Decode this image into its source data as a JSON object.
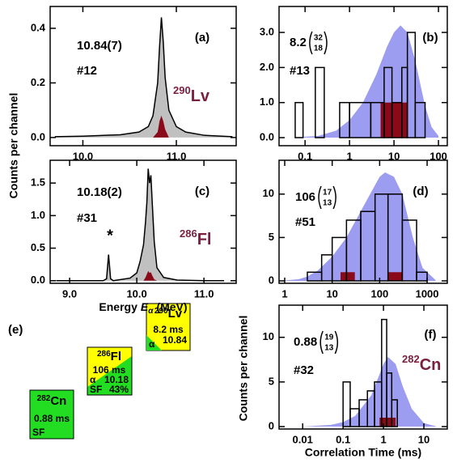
{
  "chart_data": [
    {
      "type": "area",
      "label": "(a)",
      "energy": "10.84(7)",
      "count_label": "#12",
      "nuclide": {
        "mass": "290",
        "symbol": "Lv"
      },
      "ylabel": "Counts per channel",
      "x": [
        9.7,
        10.0,
        10.4,
        10.6,
        10.7,
        10.75,
        10.8,
        10.82,
        10.84,
        10.86,
        10.88,
        10.92,
        11.0,
        11.1,
        11.3,
        11.6
      ],
      "series": [
        {
          "color": "#c0c0c0",
          "line_color": "#000000",
          "values": [
            0.003,
            0.005,
            0.01,
            0.02,
            0.04,
            0.08,
            0.2,
            0.33,
            0.44,
            0.35,
            0.22,
            0.1,
            0.04,
            0.02,
            0.008,
            0.003
          ]
        },
        {
          "color": "#8b0a1a",
          "values": [
            null,
            null,
            null,
            null,
            null,
            0,
            0.02,
            0.06,
            0.08,
            0.06,
            0.03,
            0,
            null,
            null,
            null,
            null
          ]
        }
      ],
      "xlim": [
        9.65,
        11.64
      ],
      "ylim": [
        -0.03,
        0.48
      ],
      "xticks": [
        {
          "value": 10,
          "label": "10.0"
        },
        {
          "value": 11,
          "label": "11.0"
        }
      ],
      "yticks": [
        {
          "value": 0,
          "label": "0.0"
        },
        0.2,
        0.4
      ]
    },
    {
      "type": "histogram",
      "label": "(b)",
      "half_life": {
        "value": "8.2",
        "upper": "32",
        "lower": "18"
      },
      "count_label": "#13",
      "xscale": "log",
      "curve": {
        "color": "#9c9cf0",
        "x": [
          0.05,
          0.2,
          0.5,
          1,
          2,
          4,
          7,
          10,
          14,
          20,
          30,
          50,
          70,
          100
        ],
        "values": [
          0,
          0.05,
          0.2,
          0.5,
          1.0,
          1.8,
          2.6,
          3.0,
          3.2,
          3.0,
          2.2,
          0.9,
          0.3,
          0.05
        ]
      },
      "histograms": [
        {
          "color": "#8b0a1a",
          "bins": [
            5,
            20
          ],
          "counts": [
            1
          ]
        },
        {
          "edgecolor": "#000000",
          "bins": [
            0.06,
            0.09,
            0.17,
            0.27,
            0.6,
            1,
            3,
            6,
            9,
            15,
            20,
            30,
            50
          ],
          "counts": [
            1,
            0,
            2,
            0,
            1,
            1,
            1,
            2,
            1,
            2,
            3,
            1
          ]
        }
      ],
      "xlim": [
        0.026,
        158
      ],
      "ylim": [
        -0.23,
        3.74
      ],
      "xticks": [
        0.1,
        1,
        10,
        100
      ],
      "yticks": [
        {
          "value": 0,
          "label": "0.0"
        },
        {
          "value": 1,
          "label": "1.0"
        },
        {
          "value": 2,
          "label": "2.0"
        },
        {
          "value": 3,
          "label": "3.0"
        }
      ]
    },
    {
      "type": "area",
      "label": "(c)",
      "energy": "10.18(2)",
      "count_label": "#31",
      "peak_marker": "*",
      "nuclide": {
        "mass": "286",
        "symbol": "Fl"
      },
      "xlabel": {
        "text": "Energy",
        "symbol": "E",
        "subscript": "α",
        "unit": "(MeV)"
      },
      "x": [
        8.8,
        9.5,
        9.55,
        9.58,
        9.61,
        9.65,
        9.9,
        10.0,
        10.05,
        10.1,
        10.13,
        10.15,
        10.17,
        10.19,
        10.21,
        10.23,
        10.26,
        10.3,
        10.4,
        10.6,
        11.0,
        11.3
      ],
      "series": [
        {
          "color": "#c0c0c0",
          "line_color": "#000000",
          "values": [
            0,
            0,
            0.03,
            0.4,
            0.03,
            0,
            0.04,
            0.12,
            0.3,
            0.55,
            0.9,
            1.2,
            1.72,
            1.5,
            1.62,
            1.2,
            0.6,
            0.2,
            0.05,
            0.01,
            0,
            0
          ]
        },
        {
          "color": "#8b0a1a",
          "values": [
            null,
            null,
            null,
            null,
            null,
            null,
            null,
            null,
            null,
            0,
            0.05,
            0.1,
            0.15,
            0.12,
            0.13,
            0.08,
            0.02,
            0,
            null,
            null,
            null,
            null
          ]
        }
      ],
      "xlim": [
        8.71,
        11.48
      ],
      "ylim": [
        -0.04,
        1.85
      ],
      "xticks": [
        {
          "value": 9,
          "label": "9.0"
        },
        {
          "value": 10,
          "label": "10.0"
        },
        {
          "value": 11,
          "label": "11.0"
        }
      ],
      "yticks": [
        {
          "value": 0,
          "label": "0.0"
        },
        0.5,
        {
          "value": 1,
          "label": "1.0"
        },
        1.5
      ]
    },
    {
      "type": "histogram",
      "label": "(d)",
      "half_life": {
        "value": "106",
        "upper": "17",
        "lower": "13"
      },
      "count_label": "#51",
      "xscale": "log",
      "curve": {
        "color": "#9c9cf0",
        "x": [
          1,
          2,
          3,
          5,
          10,
          20,
          50,
          100,
          130,
          200,
          300,
          500,
          800,
          1500
        ],
        "values": [
          0.05,
          0.2,
          0.5,
          1.2,
          2.8,
          5,
          9,
          12,
          12.5,
          12,
          10,
          5,
          1.5,
          0.1
        ]
      },
      "histograms": [
        {
          "color": "#8b0a1a",
          "bins": [
            15,
            30,
            150,
            300
          ],
          "counts": [
            1,
            0,
            1
          ]
        },
        {
          "edgecolor": "#000000",
          "bins": [
            3,
            6,
            10,
            20,
            40,
            80,
            150,
            300,
            600,
            1000
          ],
          "counts": [
            1,
            3,
            5,
            7,
            8,
            10,
            10,
            7,
            1
          ]
        }
      ],
      "xlim": [
        0.76,
        2660
      ],
      "ylim": [
        -0.28,
        13.9
      ],
      "xticks": [
        1,
        10,
        100,
        1000
      ],
      "yticks": [
        0,
        5,
        10
      ]
    },
    {
      "type": "histogram",
      "label": "(f)",
      "half_life": {
        "value": "0.88",
        "upper": "19",
        "lower": "13"
      },
      "count_label": "#32",
      "nuclide": {
        "mass": "282",
        "symbol": "Cn"
      },
      "ylabel": "Counts per channel",
      "xlabel": "Correlation Time (ms)",
      "xscale": "log",
      "curve": {
        "color": "#9c9cf0",
        "x": [
          0.01,
          0.05,
          0.1,
          0.2,
          0.5,
          1,
          1.3,
          2,
          3,
          5,
          10,
          20
        ],
        "values": [
          0,
          0.2,
          0.5,
          1.2,
          3.5,
          7,
          7.8,
          7,
          4.5,
          2,
          0.4,
          0.02
        ]
      },
      "histograms": [
        {
          "color": "#8b0a1a",
          "bins": [
            0.8,
            2
          ],
          "counts": [
            1
          ]
        },
        {
          "edgecolor": "#000000",
          "bins": [
            0.1,
            0.15,
            0.25,
            0.4,
            0.6,
            0.9,
            1.2,
            1.6,
            2.2
          ],
          "counts": [
            5,
            2,
            3,
            4,
            5,
            12,
            6,
            3
          ]
        }
      ],
      "xlim": [
        0.0026,
        38
      ],
      "ylim": [
        -0.27,
        13.6
      ],
      "xticks": [
        0.01,
        0.1,
        1,
        10
      ],
      "yticks": [
        0,
        5,
        10
      ]
    }
  ],
  "diagram": {
    "label": "(e)",
    "nodes": [
      {
        "nuclide": {
          "mass": "290",
          "symbol": "Lv"
        },
        "half_life": "8.2 ms",
        "alpha": "α",
        "alpha_energy": "10.84"
      },
      {
        "nuclide": {
          "mass": "286",
          "symbol": "Fl"
        },
        "half_life": "106 ms",
        "alpha": "α",
        "alpha_energy": "10.18",
        "sf": "SF",
        "sf_branch": "43%"
      },
      {
        "nuclide": {
          "mass": "282",
          "symbol": "Cn"
        },
        "half_life": "0.88 ms",
        "sf": "SF"
      }
    ]
  }
}
